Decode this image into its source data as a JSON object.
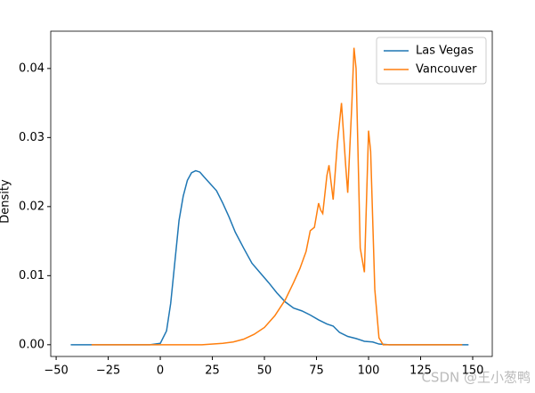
{
  "chart_data": {
    "type": "line",
    "ylabel": "Density",
    "series": [
      {
        "name": "Las Vegas",
        "color": "#1f77b4",
        "x": [
          -43,
          -5,
          0,
          3,
          5,
          7,
          9,
          11,
          13,
          15,
          17,
          19,
          21,
          24,
          27,
          30,
          33,
          36,
          40,
          44,
          48,
          52,
          56,
          60,
          64,
          68,
          72,
          76,
          80,
          83,
          86,
          90,
          94,
          98,
          102,
          105,
          110,
          148
        ],
        "values": [
          0,
          0,
          0.0002,
          0.002,
          0.006,
          0.012,
          0.018,
          0.0215,
          0.0238,
          0.0249,
          0.0252,
          0.025,
          0.0243,
          0.0233,
          0.0223,
          0.0205,
          0.0185,
          0.0163,
          0.014,
          0.0118,
          0.0104,
          0.009,
          0.0075,
          0.0062,
          0.0053,
          0.0049,
          0.0043,
          0.0036,
          0.003,
          0.0027,
          0.0018,
          0.0012,
          0.0009,
          0.0005,
          0.0004,
          0.0001,
          0,
          0
        ]
      },
      {
        "name": "Vancouver",
        "color": "#ff7f0e",
        "x": [
          -33,
          20,
          30,
          35,
          40,
          45,
          50,
          55,
          60,
          64,
          67,
          70,
          72,
          74,
          76,
          77,
          78,
          80,
          81,
          83,
          85,
          87,
          89,
          90,
          92,
          93,
          94,
          96,
          98,
          100,
          101,
          103,
          105,
          107,
          145
        ],
        "values": [
          0,
          0,
          0.0002,
          0.0004,
          0.0008,
          0.0015,
          0.0025,
          0.0042,
          0.0065,
          0.009,
          0.011,
          0.0135,
          0.0165,
          0.017,
          0.0205,
          0.0195,
          0.019,
          0.0245,
          0.026,
          0.021,
          0.029,
          0.035,
          0.026,
          0.022,
          0.035,
          0.043,
          0.04,
          0.014,
          0.0105,
          0.031,
          0.028,
          0.008,
          0.001,
          0,
          0
        ]
      }
    ],
    "xlim": [
      -52.6,
      159.4
    ],
    "xticks": [
      {
        "value": -50,
        "label": "−50"
      },
      {
        "value": -25,
        "label": "−25"
      },
      0,
      25,
      50,
      75,
      100,
      125,
      150
    ],
    "ylim": [
      -0.0017,
      0.0454
    ],
    "yticks": [
      {
        "value": 0,
        "label": "0.00"
      },
      {
        "value": 0.01,
        "label": "0.01"
      },
      {
        "value": 0.02,
        "label": "0.02"
      },
      {
        "value": 0.03,
        "label": "0.03"
      },
      {
        "value": 0.04,
        "label": "0.04"
      }
    ],
    "legend": "upper right",
    "watermark": "CSDN @王小葱鸭"
  }
}
